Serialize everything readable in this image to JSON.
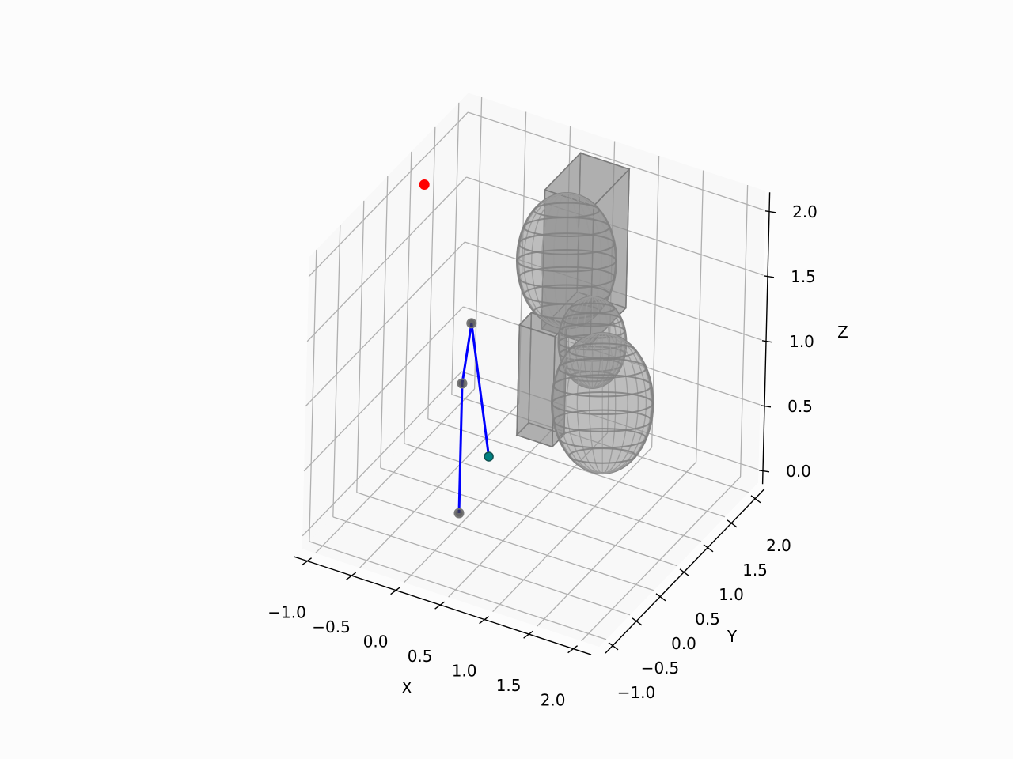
{
  "chart_data": {
    "type": "scatter",
    "projection": "3d",
    "title": "",
    "xlabel": "X",
    "ylabel": "Y",
    "zlabel": "Z",
    "xlim": [
      -1.15,
      2.2
    ],
    "ylim": [
      -1.15,
      2.2
    ],
    "zlim": [
      -0.1,
      2.15
    ],
    "grid": true,
    "xticks": [
      -1.0,
      -0.5,
      0.0,
      0.5,
      1.0,
      1.5,
      2.0
    ],
    "yticks": [
      -1.0,
      -0.5,
      0.0,
      0.5,
      1.0,
      1.5,
      2.0
    ],
    "zticks": [
      0.0,
      0.5,
      1.0,
      1.5,
      2.0
    ],
    "xtick_labels": [
      "−1.0",
      "−0.5",
      "0.0",
      "0.5",
      "1.0",
      "1.5",
      "2.0"
    ],
    "ytick_labels": [
      "−1.0",
      "−0.5",
      "0.0",
      "0.5",
      "1.0",
      "1.5",
      "2.0"
    ],
    "ztick_labels": [
      "0.0",
      "0.5",
      "1.0",
      "1.5",
      "2.0"
    ],
    "arm_line": {
      "color": "#0000ff",
      "points": [
        [
          0.0,
          0.0,
          0.0
        ],
        [
          0.0,
          0.0,
          1.0
        ],
        [
          0.0,
          0.17,
          1.4
        ],
        [
          0.1,
          0.42,
          0.3
        ]
      ]
    },
    "joints": {
      "color": "#404040",
      "points": [
        [
          0.0,
          0.0,
          0.0
        ],
        [
          0.0,
          0.0,
          1.0
        ],
        [
          0.0,
          0.17,
          1.4
        ]
      ]
    },
    "end_effector": {
      "color": "#008080",
      "point": [
        0.1,
        0.42,
        0.3
      ]
    },
    "target": {
      "color": "#ff0000",
      "point": [
        -0.4,
        -0.15,
        2.5
      ]
    },
    "box_obstacles": [
      {
        "min": [
          0.36,
          0.99,
          1.13
        ],
        "max": [
          0.91,
          1.74,
          2.2
        ]
      },
      {
        "min": [
          -0.1,
          1.4,
          0.05
        ],
        "max": [
          0.3,
          1.65,
          0.9
        ]
      }
    ],
    "ellipsoid_obstacles": [
      {
        "center": [
          0.41,
          1.4,
          1.51
        ],
        "radii": [
          0.5,
          0.5,
          0.52
        ]
      },
      {
        "center": [
          0.72,
          1.4,
          0.95
        ],
        "radii": [
          0.34,
          0.34,
          0.35
        ]
      },
      {
        "center": [
          0.85,
          1.4,
          0.51
        ],
        "radii": [
          0.51,
          0.51,
          0.54
        ]
      }
    ],
    "obstacle_color": "#808080"
  }
}
